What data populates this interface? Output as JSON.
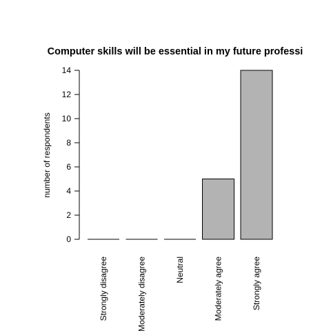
{
  "chart_data": {
    "type": "bar",
    "title": "Computer skills will be essential in my future professi",
    "xlabel": "",
    "ylabel": "number of respondents",
    "categories": [
      "Strongly disagree",
      "Moderately disagree",
      "Neutral",
      "Moderately agree",
      "Strongly agree"
    ],
    "values": [
      0,
      0,
      0,
      5,
      14
    ],
    "ylim": [
      0,
      14
    ],
    "yticks": [
      0,
      2,
      4,
      6,
      8,
      10,
      12,
      14
    ],
    "bar_color": "#b3b3b3",
    "grid": false,
    "legend": "none"
  }
}
